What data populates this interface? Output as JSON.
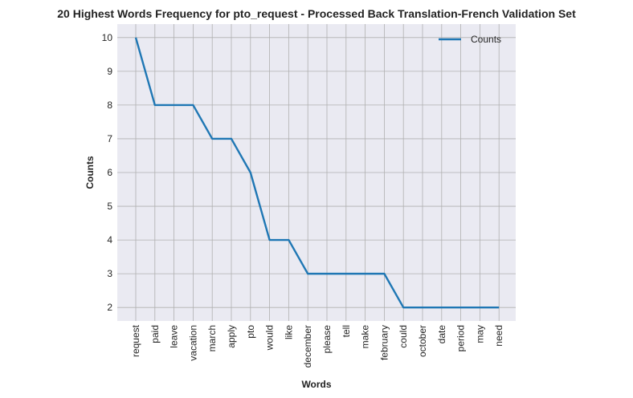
{
  "chart_data": {
    "type": "line",
    "title": "20 Highest Words Frequency for pto_request - Processed Back Translation-French Validation Set",
    "xlabel": "Words",
    "ylabel": "Counts",
    "categories": [
      "request",
      "paid",
      "leave",
      "vacation",
      "march",
      "apply",
      "pto",
      "would",
      "like",
      "december",
      "please",
      "tell",
      "make",
      "february",
      "could",
      "october",
      "date",
      "period",
      "may",
      "need"
    ],
    "series": [
      {
        "name": "Counts",
        "values": [
          10,
          8,
          8,
          8,
          7,
          7,
          6,
          4,
          4,
          3,
          3,
          3,
          3,
          3,
          2,
          2,
          2,
          2,
          2,
          2
        ],
        "color": "#1f77b4"
      }
    ],
    "yticks": [
      2,
      3,
      4,
      5,
      6,
      7,
      8,
      9,
      10
    ],
    "ylim": [
      1.6,
      10.4
    ],
    "grid": true,
    "legend_position": "top-right",
    "background": "#eaeaf2"
  }
}
